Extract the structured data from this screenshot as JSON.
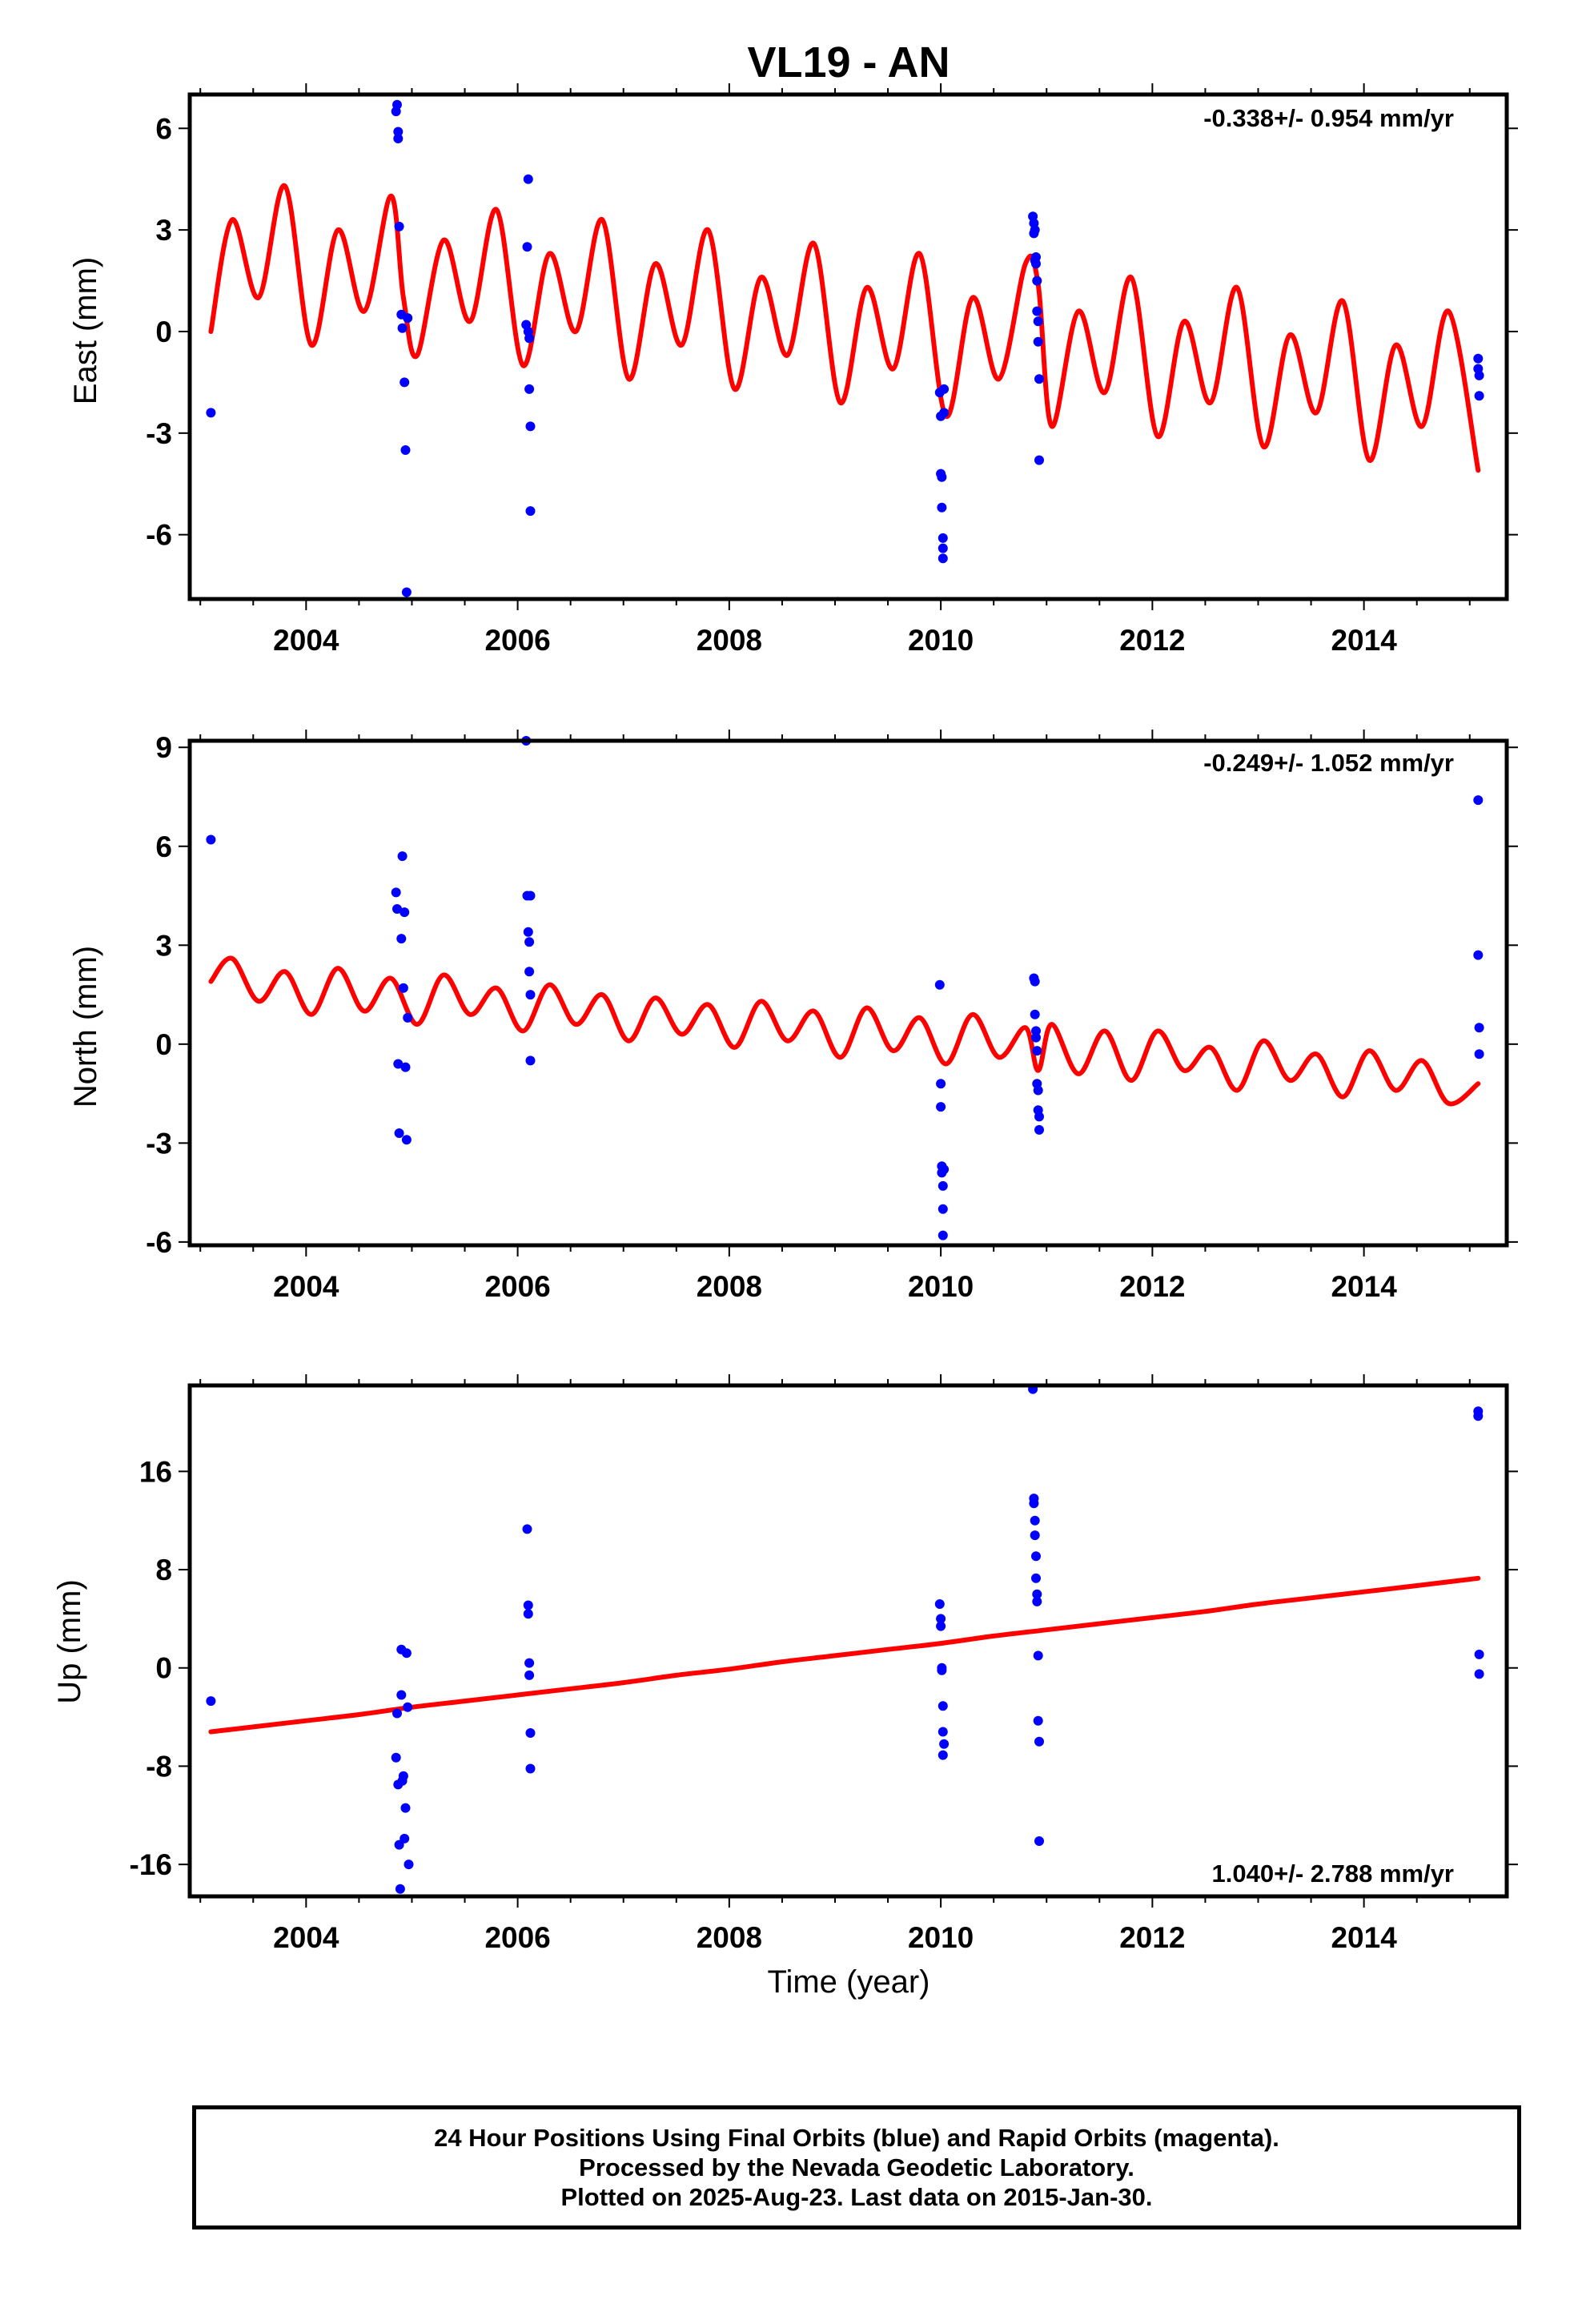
{
  "title": "VL19 - AN",
  "xlabel": "Time (year)",
  "footer": {
    "line1": "24 Hour Positions Using Final Orbits (blue) and Rapid Orbits (magenta).",
    "line2": "Processed by the Nevada Geodetic Laboratory.",
    "line3": "Plotted on 2025-Aug-23. Last data on 2015-Jan-30."
  },
  "colors": {
    "data": "#0000ff",
    "model": "#ff0000",
    "frame": "#000000"
  },
  "chart_data": [
    {
      "type": "scatter",
      "panel": "east",
      "ylabel": "East (mm)",
      "rate_label": "-0.338+/- 0.954 mm/yr",
      "rate_label_position": "top-right",
      "xlim": [
        2002.9,
        2015.35
      ],
      "ylim": [
        -7.9,
        7.0
      ],
      "xticks": [
        "2004",
        "2006",
        "2008",
        "2010",
        "2012",
        "2014"
      ],
      "yticks": [
        "-6",
        "-3",
        "0",
        "3",
        "6"
      ],
      "series": [
        {
          "role": "daily positions",
          "x": [
            2003.1,
            2004.85,
            2004.86,
            2004.87,
            2004.87,
            2004.88,
            2004.9,
            2004.91,
            2004.93,
            2004.94,
            2004.95,
            2004.96,
            2006.08,
            2006.09,
            2006.1,
            2006.1,
            2006.11,
            2006.11,
            2006.12,
            2006.12,
            2009.99,
            2010.0,
            2010.0,
            2010.01,
            2010.01,
            2010.02,
            2010.02,
            2010.02,
            2010.03,
            2010.03,
            2010.87,
            2010.88,
            2010.88,
            2010.89,
            2010.89,
            2010.9,
            2010.9,
            2010.91,
            2010.91,
            2010.92,
            2010.92,
            2010.93,
            2010.93,
            2015.08,
            2015.08,
            2015.09,
            2015.09
          ],
          "y": [
            -2.4,
            6.5,
            6.7,
            5.9,
            5.7,
            3.1,
            0.5,
            0.1,
            -1.5,
            -3.5,
            -7.7,
            0.4,
            0.2,
            2.5,
            4.5,
            0.0,
            -0.2,
            -1.7,
            -2.8,
            -5.3,
            -1.8,
            -2.5,
            -4.2,
            -4.3,
            -5.2,
            -6.1,
            -6.4,
            -6.7,
            -1.7,
            -2.4,
            3.4,
            3.2,
            2.9,
            3.0,
            2.1,
            2.2,
            2.0,
            1.5,
            0.6,
            0.3,
            -0.3,
            -1.4,
            -3.8,
            -0.8,
            -1.1,
            -1.3,
            -1.9
          ]
        },
        {
          "role": "model (trend + seasonal, offsets)",
          "trend_mm_per_yr": -0.338,
          "x": [
            2003.1,
            2003.3,
            2003.55,
            2003.8,
            2004.05,
            2004.3,
            2004.55,
            2004.8,
            2004.92,
            2005.05,
            2005.3,
            2005.55,
            2005.8,
            2006.05,
            2006.3,
            2006.55,
            2006.8,
            2007.05,
            2007.3,
            2007.55,
            2007.8,
            2008.05,
            2008.3,
            2008.55,
            2008.8,
            2009.05,
            2009.3,
            2009.55,
            2009.8,
            2010.05,
            2010.3,
            2010.55,
            2010.8,
            2010.92,
            2011.05,
            2011.3,
            2011.55,
            2011.8,
            2012.05,
            2012.3,
            2012.55,
            2012.8,
            2013.05,
            2013.3,
            2013.55,
            2013.8,
            2014.05,
            2014.3,
            2014.55,
            2014.8,
            2015.08
          ],
          "y": [
            0.0,
            3.3,
            1.0,
            4.3,
            -0.4,
            3.0,
            0.6,
            4.0,
            1.0,
            -0.7,
            2.7,
            0.3,
            3.6,
            -1.0,
            2.3,
            0.0,
            3.3,
            -1.4,
            2.0,
            -0.4,
            3.0,
            -1.7,
            1.6,
            -0.7,
            2.6,
            -2.1,
            1.3,
            -1.1,
            2.3,
            -2.5,
            1.0,
            -1.4,
            2.0,
            1.4,
            -2.8,
            0.6,
            -1.8,
            1.6,
            -3.1,
            0.3,
            -2.1,
            1.3,
            -3.4,
            -0.1,
            -2.4,
            0.9,
            -3.8,
            -0.4,
            -2.8,
            0.6,
            -4.1
          ]
        }
      ]
    },
    {
      "type": "scatter",
      "panel": "north",
      "ylabel": "North (mm)",
      "rate_label": "-0.249+/- 1.052 mm/yr",
      "rate_label_position": "top-right",
      "xlim": [
        2002.9,
        2015.35
      ],
      "ylim": [
        -6.1,
        9.2
      ],
      "xticks": [
        "2004",
        "2006",
        "2008",
        "2010",
        "2012",
        "2014"
      ],
      "yticks": [
        "-6",
        "-3",
        "0",
        "3",
        "6",
        "9"
      ],
      "series": [
        {
          "role": "daily positions",
          "x": [
            2003.1,
            2004.85,
            2004.86,
            2004.87,
            2004.88,
            2004.9,
            2004.91,
            2004.92,
            2004.93,
            2004.94,
            2004.95,
            2004.96,
            2006.08,
            2006.09,
            2006.1,
            2006.11,
            2006.11,
            2006.12,
            2006.12,
            2006.12,
            2009.99,
            2010.0,
            2010.0,
            2010.01,
            2010.01,
            2010.02,
            2010.02,
            2010.02,
            2010.03,
            2010.88,
            2010.89,
            2010.89,
            2010.9,
            2010.9,
            2010.91,
            2010.91,
            2010.92,
            2010.92,
            2010.93,
            2010.93,
            2015.08,
            2015.08,
            2015.09,
            2015.09
          ],
          "y": [
            6.2,
            4.6,
            4.1,
            -0.6,
            -2.7,
            3.2,
            5.7,
            1.7,
            4.0,
            -0.7,
            -2.9,
            0.8,
            9.2,
            4.5,
            3.4,
            3.1,
            2.2,
            -0.5,
            4.5,
            1.5,
            1.8,
            -1.2,
            -1.9,
            -3.7,
            -3.9,
            -4.3,
            -5.0,
            -5.8,
            -3.8,
            2.0,
            1.9,
            0.9,
            0.4,
            0.2,
            -0.2,
            -1.2,
            -1.4,
            -2.0,
            -2.2,
            -2.6,
            7.4,
            2.7,
            0.5,
            -0.3
          ]
        },
        {
          "role": "model (trend + seasonal, offsets)",
          "trend_mm_per_yr": -0.249,
          "x": [
            2003.1,
            2003.3,
            2003.55,
            2003.8,
            2004.05,
            2004.3,
            2004.55,
            2004.8,
            2005.05,
            2005.3,
            2005.55,
            2005.8,
            2006.05,
            2006.3,
            2006.55,
            2006.8,
            2007.05,
            2007.3,
            2007.55,
            2007.8,
            2008.05,
            2008.3,
            2008.55,
            2008.8,
            2009.05,
            2009.3,
            2009.55,
            2009.8,
            2010.05,
            2010.3,
            2010.55,
            2010.8,
            2010.92,
            2011.05,
            2011.3,
            2011.55,
            2011.8,
            2012.05,
            2012.3,
            2012.55,
            2012.8,
            2013.05,
            2013.3,
            2013.55,
            2013.8,
            2014.05,
            2014.3,
            2014.55,
            2014.8,
            2015.08
          ],
          "y": [
            1.9,
            2.6,
            1.3,
            2.2,
            0.9,
            2.3,
            1.0,
            2.0,
            0.6,
            2.1,
            0.9,
            1.7,
            0.4,
            1.8,
            0.6,
            1.5,
            0.1,
            1.4,
            0.3,
            1.2,
            -0.1,
            1.3,
            0.1,
            1.0,
            -0.4,
            1.1,
            -0.2,
            0.8,
            -0.6,
            0.9,
            -0.4,
            0.5,
            -0.8,
            0.6,
            -0.9,
            0.4,
            -1.1,
            0.4,
            -0.8,
            -0.1,
            -1.4,
            0.1,
            -1.1,
            -0.3,
            -1.6,
            -0.2,
            -1.4,
            -0.5,
            -1.8,
            -1.2
          ]
        }
      ]
    },
    {
      "type": "scatter",
      "panel": "up",
      "ylabel": "Up (mm)",
      "rate_label": "1.040+/- 2.788 mm/yr",
      "rate_label_position": "bottom-right",
      "xlim": [
        2002.9,
        2015.35
      ],
      "ylim": [
        -18.6,
        23.0
      ],
      "xticks": [
        "2004",
        "2006",
        "2008",
        "2010",
        "2012",
        "2014"
      ],
      "yticks": [
        "-16",
        "-8",
        "0",
        "8",
        "16"
      ],
      "series": [
        {
          "role": "daily positions",
          "x": [
            2003.1,
            2004.85,
            2004.86,
            2004.87,
            2004.88,
            2004.89,
            2004.9,
            2004.9,
            2004.91,
            2004.92,
            2004.93,
            2004.94,
            2004.95,
            2004.96,
            2004.97,
            2006.09,
            2006.1,
            2006.1,
            2006.11,
            2006.11,
            2006.12,
            2006.12,
            2009.99,
            2010.0,
            2010.0,
            2010.01,
            2010.01,
            2010.02,
            2010.02,
            2010.02,
            2010.03,
            2010.87,
            2010.88,
            2010.88,
            2010.89,
            2010.89,
            2010.9,
            2010.9,
            2010.91,
            2010.91,
            2010.92,
            2010.92,
            2010.93,
            2010.93,
            2015.08,
            2015.08,
            2015.09,
            2015.09
          ],
          "y": [
            -2.7,
            -7.3,
            -3.7,
            -9.5,
            -14.4,
            -18.0,
            -2.2,
            1.5,
            -9.2,
            -8.8,
            -13.9,
            -11.4,
            1.2,
            -3.2,
            -16.0,
            11.3,
            5.1,
            4.4,
            0.4,
            -0.6,
            -5.3,
            -8.2,
            5.2,
            4.0,
            3.4,
            0.0,
            -0.2,
            -3.1,
            -5.2,
            -7.1,
            -6.2,
            22.7,
            13.8,
            13.4,
            12.0,
            10.8,
            9.1,
            7.3,
            5.4,
            6.0,
            1.0,
            -4.3,
            -6.0,
            -14.1,
            20.9,
            20.5,
            1.1,
            -0.5
          ]
        },
        {
          "role": "model (trend + seasonal)",
          "trend_mm_per_yr": 1.04,
          "x": [
            2003.1,
            2003.5,
            2004.0,
            2004.5,
            2005.0,
            2005.5,
            2006.0,
            2006.5,
            2007.0,
            2007.5,
            2008.0,
            2008.5,
            2009.0,
            2009.5,
            2010.0,
            2010.5,
            2011.0,
            2011.5,
            2012.0,
            2012.5,
            2013.0,
            2013.5,
            2014.0,
            2014.5,
            2015.08
          ],
          "y": [
            -5.2,
            -4.8,
            -4.3,
            -3.8,
            -3.2,
            -2.7,
            -2.2,
            -1.7,
            -1.2,
            -0.6,
            -0.1,
            0.5,
            1.0,
            1.5,
            2.0,
            2.6,
            3.1,
            3.6,
            4.1,
            4.6,
            5.2,
            5.7,
            6.2,
            6.7,
            7.3
          ]
        }
      ]
    }
  ]
}
